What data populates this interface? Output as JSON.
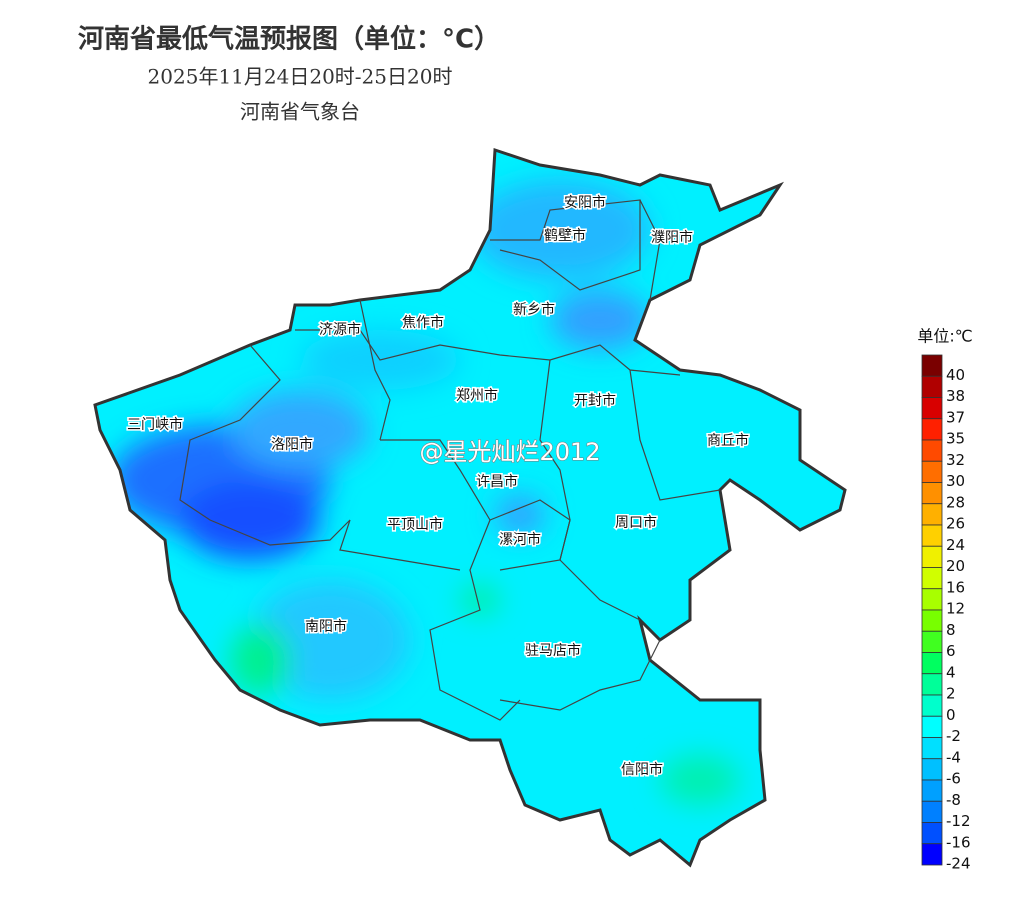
{
  "header": {
    "title": "河南省最低气温预报图（单位：°C）",
    "subtitle": "2025年11月24日20时-25日20时",
    "issuer": "河南省气象台"
  },
  "cities": [
    "安阳市",
    "鹤壁市",
    "濮阳市",
    "新乡市",
    "济源市",
    "焦作市",
    "郑州市",
    "开封市",
    "三门峡市",
    "洛阳市",
    "商丘市",
    "许昌市",
    "平顶山市",
    "漯河市",
    "周口市",
    "南阳市",
    "驻马店市",
    "信阳市"
  ],
  "legend": {
    "title": "单位:℃",
    "ticks": [
      40,
      38,
      37,
      35,
      32,
      30,
      28,
      26,
      24,
      20,
      16,
      12,
      8,
      6,
      4,
      2,
      0,
      -2,
      -4,
      -6,
      -8,
      -12,
      -16,
      -24
    ],
    "colors": [
      "#7a0000",
      "#b00000",
      "#d80000",
      "#ff2000",
      "#ff4a00",
      "#ff6e00",
      "#ff9000",
      "#ffb000",
      "#ffd000",
      "#f0f000",
      "#d0ff00",
      "#a8ff00",
      "#78ff00",
      "#40ff20",
      "#00ff60",
      "#00ff99",
      "#00ffcc",
      "#00ffff",
      "#00e0ff",
      "#00c0ff",
      "#00a0ff",
      "#0080ff",
      "#0050ff",
      "#0000ff"
    ]
  },
  "watermark": "@星光灿烂2012"
}
